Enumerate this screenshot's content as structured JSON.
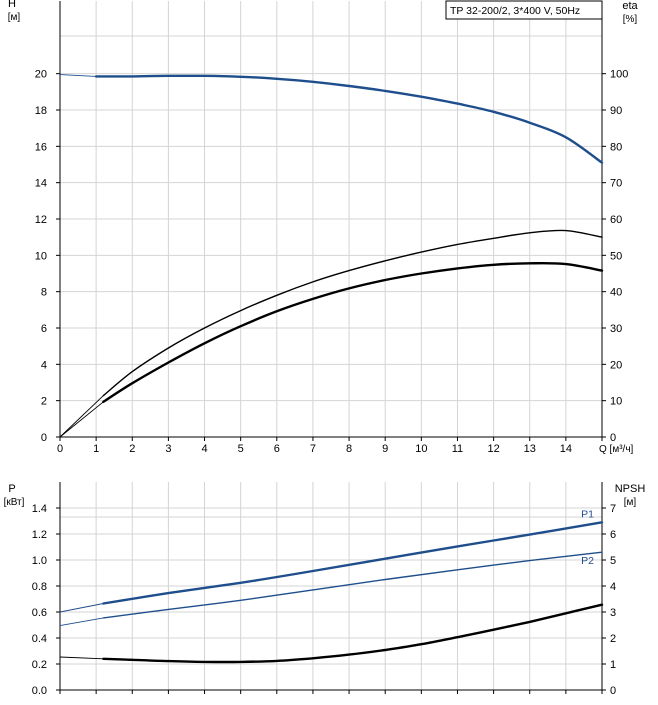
{
  "chart_data": [
    {
      "type": "line",
      "title": "TP 32-200/2, 3*400 V, 50Hz",
      "xlabel": "Q [м³/ч]",
      "xlim": [
        0,
        15
      ],
      "x_ticks": [
        "0",
        "1",
        "2",
        "3",
        "4",
        "5",
        "6",
        "7",
        "8",
        "9",
        "10",
        "11",
        "12",
        "13",
        "14"
      ],
      "left_axis": {
        "name": "H",
        "unit": "[м]",
        "lim": [
          0,
          24
        ],
        "ticks": [
          "0",
          "2",
          "4",
          "6",
          "8",
          "10",
          "12",
          "14",
          "16",
          "18",
          "20"
        ]
      },
      "right_axis": {
        "name": "eta",
        "unit": "[%]",
        "lim": [
          0,
          120
        ],
        "ticks": [
          "0",
          "10",
          "20",
          "30",
          "40",
          "50",
          "60",
          "70",
          "80",
          "90",
          "100"
        ]
      },
      "grid": true,
      "series": [
        {
          "axis": "left",
          "color": "#1f4e8c",
          "x": [
            0,
            1,
            2,
            3,
            4,
            5,
            6,
            7,
            8,
            9,
            10,
            11,
            12,
            13,
            14,
            15
          ],
          "y": [
            19.95,
            19.85,
            19.85,
            19.88,
            19.88,
            19.83,
            19.72,
            19.55,
            19.32,
            19.05,
            18.73,
            18.35,
            17.9,
            17.3,
            16.5,
            15.1
          ]
        },
        {
          "axis": "right",
          "color": "#000000",
          "x": [
            0,
            1.2,
            2,
            3,
            4,
            5,
            6,
            7,
            8,
            9,
            10,
            11,
            12,
            13,
            14,
            15
          ],
          "y": [
            0,
            11.4,
            18,
            24.5,
            30,
            34.8,
            39,
            42.7,
            45.8,
            48.5,
            50.9,
            53,
            54.7,
            56.2,
            56.8,
            55
          ]
        },
        {
          "axis": "right",
          "color": "#000000",
          "x": [
            0,
            1.2,
            2,
            3,
            4,
            5,
            6,
            7,
            8,
            9,
            10,
            11,
            12,
            13,
            14,
            15
          ],
          "y": [
            0,
            9.7,
            14.8,
            20.5,
            25.8,
            30.5,
            34.6,
            38,
            40.9,
            43.2,
            45,
            46.4,
            47.4,
            47.8,
            47.6,
            45.8
          ]
        }
      ]
    },
    {
      "type": "line",
      "xlim": [
        0,
        15
      ],
      "left_axis": {
        "name": "P",
        "unit": "[кВт]",
        "lim": [
          0,
          1.6
        ],
        "ticks": [
          "0.0",
          "0.2",
          "0.4",
          "0.6",
          "0.8",
          "1.0",
          "1.2",
          "1.4"
        ]
      },
      "right_axis": {
        "name": "NPSH",
        "unit": "[м]",
        "lim": [
          0,
          8
        ],
        "ticks": [
          "0",
          "1",
          "2",
          "3",
          "4",
          "5",
          "6",
          "7"
        ]
      },
      "grid": true,
      "series": [
        {
          "name": "P1",
          "axis": "left",
          "color": "#1f4e8c",
          "x": [
            0,
            1.2,
            3,
            5,
            7,
            9,
            11,
            13,
            15
          ],
          "y": [
            0.6,
            0.665,
            0.745,
            0.825,
            0.915,
            1.01,
            1.105,
            1.195,
            1.29
          ]
        },
        {
          "name": "P2",
          "axis": "left",
          "color": "#1f4e8c",
          "x": [
            0,
            1.2,
            3,
            5,
            7,
            9,
            11,
            13,
            15
          ],
          "y": [
            0.495,
            0.555,
            0.62,
            0.69,
            0.77,
            0.85,
            0.925,
            0.995,
            1.06
          ]
        },
        {
          "axis": "right",
          "color": "#000000",
          "x": [
            0,
            1.2,
            2,
            3,
            4,
            5,
            6,
            7,
            8,
            9,
            10,
            11,
            12,
            13,
            14,
            15
          ],
          "y": [
            1.27,
            1.2,
            1.16,
            1.11,
            1.08,
            1.08,
            1.12,
            1.22,
            1.36,
            1.54,
            1.76,
            2.03,
            2.32,
            2.62,
            2.95,
            3.28
          ]
        }
      ]
    }
  ]
}
